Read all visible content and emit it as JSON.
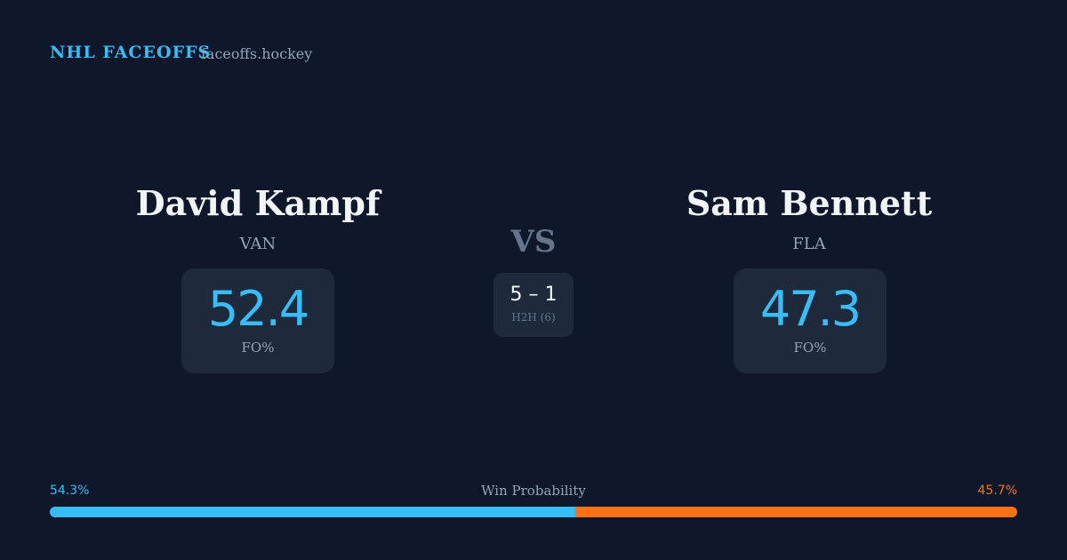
{
  "header": {
    "brand": "NHL FACEOFFS",
    "site": "faceoffs.hockey"
  },
  "players": [
    {
      "name": "David Kampf",
      "team": "VAN",
      "fo_pct": 52.4,
      "fo_label": "FO%"
    },
    {
      "name": "Sam Bennett",
      "team": "FLA",
      "fo_pct": 47.3,
      "fo_label": "FO%"
    }
  ],
  "versus": "VS",
  "h2h": {
    "score": "5 – 1",
    "label": "H2H (6)"
  },
  "win_probability": {
    "label": "Win Probability",
    "values": [
      54.3,
      45.7
    ],
    "value_labels": [
      "54.3%",
      "45.7%"
    ],
    "colors": [
      "#38bdf8",
      "#f97316"
    ]
  }
}
